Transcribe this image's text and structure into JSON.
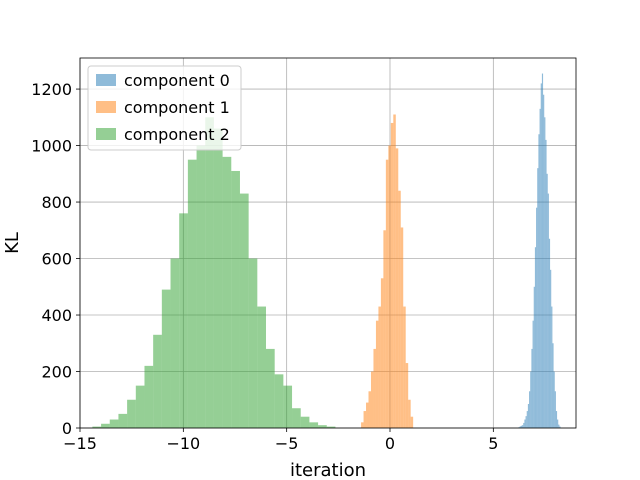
{
  "chart_data": {
    "type": "bar",
    "subtype": "histogram",
    "title": "",
    "xlabel": "iteration",
    "ylabel": "KL",
    "xlim": [
      -15,
      9
    ],
    "ylim": [
      0,
      1310
    ],
    "xticks": [
      -15,
      -10,
      -5,
      0,
      5
    ],
    "yticks": [
      0,
      200,
      400,
      600,
      800,
      1000,
      1200
    ],
    "grid": true,
    "legend_position": "top-left",
    "series": [
      {
        "name": "component 0",
        "color": "#1f77b4",
        "alpha": 0.5,
        "bin_width": 0.0565,
        "bin_start": 6.22,
        "counts": [
          3,
          6,
          8,
          10,
          18,
          30,
          42,
          60,
          85,
          130,
          200,
          280,
          380,
          500,
          640,
          780,
          920,
          1040,
          1130,
          1220,
          1255,
          1180,
          1100,
          1020,
          900,
          830,
          670,
          560,
          430,
          300,
          200,
          130,
          60,
          30,
          12,
          5
        ]
      },
      {
        "name": "component 1",
        "color": "#ff7f0e",
        "alpha": 0.5,
        "bin_width": 0.12,
        "bin_start": -1.4,
        "counts": [
          20,
          60,
          90,
          130,
          200,
          280,
          380,
          430,
          530,
          700,
          950,
          1000,
          1080,
          1110,
          990,
          840,
          710,
          430,
          230,
          100,
          40
        ]
      },
      {
        "name": "component 2",
        "color": "#2ca02c",
        "alpha": 0.5,
        "bin_width": 0.42,
        "bin_start": -14.4,
        "counts": [
          5,
          15,
          30,
          50,
          100,
          150,
          220,
          330,
          490,
          600,
          760,
          950,
          1000,
          1100,
          1060,
          960,
          910,
          830,
          600,
          430,
          280,
          190,
          150,
          70,
          40,
          20,
          10,
          5
        ]
      }
    ]
  }
}
